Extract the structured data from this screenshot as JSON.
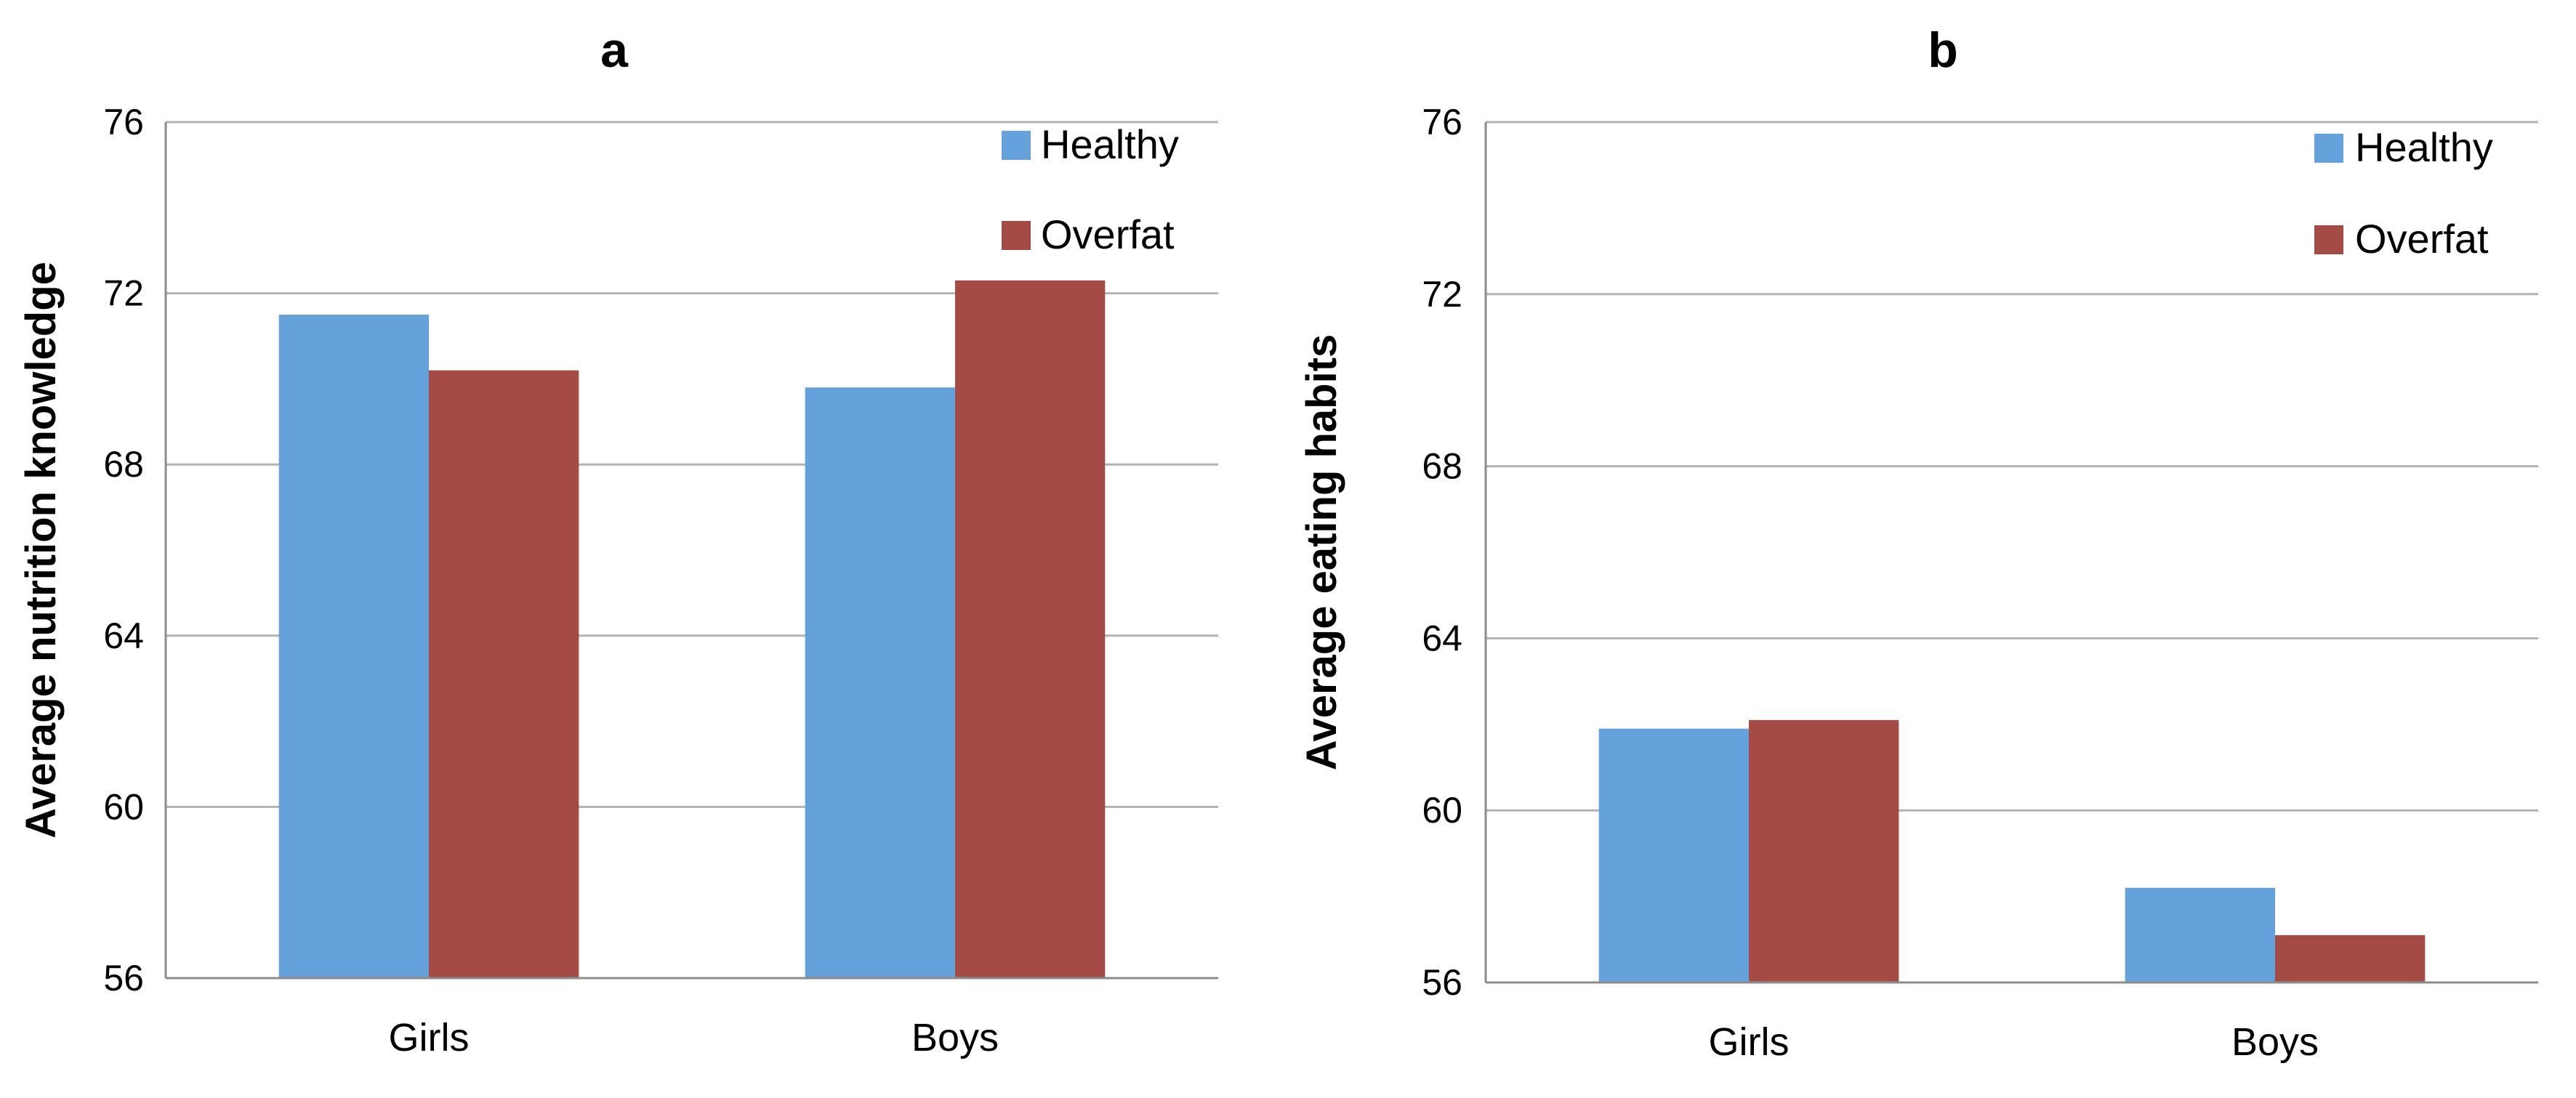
{
  "chart_data": [
    {
      "type": "bar",
      "panel_label": "a",
      "ylabel": "Average nutrition knowledge",
      "xlabel": "",
      "categories": [
        "Girls",
        "Boys"
      ],
      "series": [
        {
          "name": "Healthy",
          "color": "#65a1db",
          "values": [
            71.5,
            69.8
          ]
        },
        {
          "name": "Overfat",
          "color": "#a44b45",
          "values": [
            70.2,
            72.3
          ]
        }
      ],
      "ylim": [
        56,
        76
      ],
      "yticks": [
        56,
        60,
        64,
        68,
        72,
        76
      ],
      "grid": true,
      "legend_position": "top-right"
    },
    {
      "type": "bar",
      "panel_label": "b",
      "ylabel": "Average eating habits",
      "xlabel": "",
      "categories": [
        "Girls",
        "Boys"
      ],
      "series": [
        {
          "name": "Healthy",
          "color": "#65a1db",
          "values": [
            61.9,
            58.2
          ]
        },
        {
          "name": "Overfat",
          "color": "#a44b45",
          "values": [
            62.1,
            57.1
          ]
        }
      ],
      "ylim": [
        56,
        76
      ],
      "yticks": [
        56,
        60,
        64,
        68,
        72,
        76
      ],
      "grid": true,
      "legend_position": "top-right"
    }
  ]
}
